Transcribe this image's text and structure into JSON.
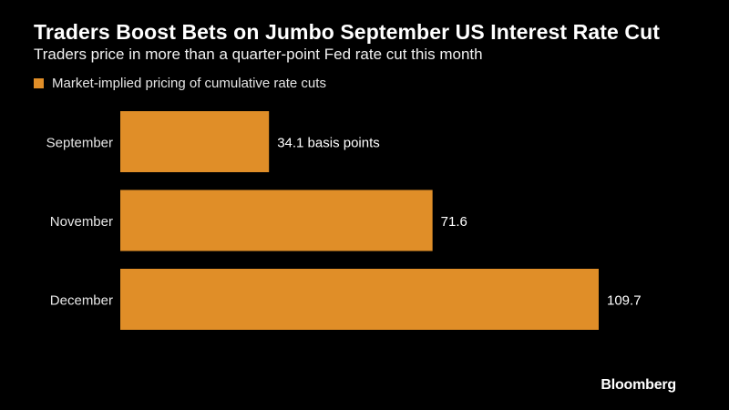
{
  "title": "Traders Boost Bets on Jumbo September US Interest Rate Cut",
  "subtitle": "Traders price in more than a quarter-point Fed rate cut this month",
  "brand": "Bloomberg",
  "colors": {
    "background": "#000000",
    "bar": "#e08e28",
    "text": "#ffffff",
    "muted_text": "#e6e6e6"
  },
  "chart_data": {
    "type": "bar",
    "orientation": "horizontal",
    "categories": [
      "September",
      "November",
      "December"
    ],
    "series": [
      {
        "name": "Market-implied pricing of cumulative rate cuts",
        "values": [
          34.1,
          71.6,
          109.7
        ]
      }
    ],
    "data_labels": [
      "34.1 basis points",
      "71.6",
      "109.7"
    ],
    "xlim": [
      0,
      110
    ],
    "grid": false,
    "legend_position": "top-left"
  }
}
